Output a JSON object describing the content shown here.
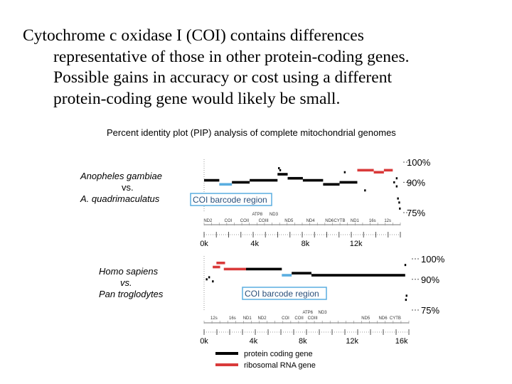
{
  "slide": {
    "line1": "Cytochrome c oxidase I (COI) contains differences",
    "line2": "representative of those in other protein-coding genes.",
    "line3": "Possible gains in accuracy or cost using a different",
    "line4": "protein-coding gene would likely be small."
  },
  "colors": {
    "protein": "#000000",
    "rrna": "#d93a3a",
    "coi": "#5aaee0",
    "axis": "#555555"
  },
  "chart_data": {
    "type": "line",
    "title": "Percent identity plot (PIP) analysis of complete mitochondrial genomes",
    "legend": {
      "placement": "bottom",
      "entries": [
        {
          "label": "protein coding gene",
          "color": "#000000"
        },
        {
          "label": "ribosomal RNA gene",
          "color": "#d93a3a"
        }
      ]
    },
    "panels": [
      {
        "name": "anopheles",
        "comparison": [
          "Anopheles gambiae",
          "vs.",
          "A. quadrimaculatus"
        ],
        "box_label": "COI barcode region",
        "xlim": [
          0,
          15500
        ],
        "ylim": [
          75,
          100
        ],
        "y_ticks": [
          {
            "value": 100,
            "label": "100%"
          },
          {
            "value": 90,
            "label": "90%"
          },
          {
            "value": 75,
            "label": "75%"
          }
        ],
        "x_ticks": [
          {
            "value": 0,
            "label": "0k"
          },
          {
            "value": 4000,
            "label": "4k"
          },
          {
            "value": 8000,
            "label": "8k"
          },
          {
            "value": 12000,
            "label": "12k"
          }
        ],
        "genes_row": [
          {
            "label": "ND2",
            "x": 300
          },
          {
            "label": "COI",
            "x": 1900
          },
          {
            "label": "COII",
            "x": 3200
          },
          {
            "label": "COIII",
            "x": 4700
          },
          {
            "label": "ND5",
            "x": 6700
          },
          {
            "label": "ND4",
            "x": 8400
          },
          {
            "label": "ND6",
            "x": 9900
          },
          {
            "label": "CYTB",
            "x": 10700
          },
          {
            "label": "ND1",
            "x": 11900
          },
          {
            "label": "16s",
            "x": 13300
          },
          {
            "label": "12s",
            "x": 14500
          }
        ],
        "genes_above": [
          {
            "label": "ATP8",
            "x": 4200
          },
          {
            "label": "ND3",
            "x": 5500
          }
        ],
        "segments": [
          {
            "kind": "protein",
            "start": 0,
            "end": 1200,
            "y": 91
          },
          {
            "kind": "coi",
            "start": 1200,
            "end": 2200,
            "y": 89
          },
          {
            "kind": "protein",
            "start": 2200,
            "end": 3600,
            "y": 90
          },
          {
            "kind": "protein",
            "start": 3600,
            "end": 5800,
            "y": 91
          },
          {
            "kind": "protein",
            "start": 5800,
            "end": 6600,
            "y": 94
          },
          {
            "kind": "protein",
            "start": 6600,
            "end": 7800,
            "y": 92
          },
          {
            "kind": "protein",
            "start": 7800,
            "end": 9400,
            "y": 91
          },
          {
            "kind": "protein",
            "start": 9400,
            "end": 10700,
            "y": 89
          },
          {
            "kind": "protein",
            "start": 10700,
            "end": 12100,
            "y": 90
          },
          {
            "kind": "rrna",
            "start": 12100,
            "end": 13400,
            "y": 96
          },
          {
            "kind": "rrna",
            "start": 13400,
            "end": 14200,
            "y": 95
          },
          {
            "kind": "rrna",
            "start": 14200,
            "end": 14900,
            "y": 96
          }
        ],
        "dots": [
          [
            5900,
            97
          ],
          [
            6000,
            96
          ],
          [
            11100,
            95
          ],
          [
            12700,
            86
          ],
          [
            15000,
            90
          ],
          [
            15200,
            88
          ],
          [
            15300,
            82
          ],
          [
            15400,
            80
          ],
          [
            15450,
            77
          ],
          [
            15200,
            92
          ]
        ],
        "coi_box": {
          "start": 1200,
          "end": 2200
        }
      },
      {
        "name": "homo",
        "comparison": [
          "Homo sapiens",
          "vs.",
          "Pan troglodytes"
        ],
        "box_label": "COI barcode region",
        "xlim": [
          0,
          16600
        ],
        "ylim": [
          75,
          100
        ],
        "y_ticks": [
          {
            "value": 100,
            "label": "100%"
          },
          {
            "value": 90,
            "label": "90%"
          },
          {
            "value": 75,
            "label": "75%"
          }
        ],
        "x_ticks": [
          {
            "value": 0,
            "label": "0k"
          },
          {
            "value": 4000,
            "label": "4k"
          },
          {
            "value": 8000,
            "label": "8k"
          },
          {
            "value": 12000,
            "label": "12k"
          },
          {
            "value": 16000,
            "label": "16k"
          }
        ],
        "genes_row": [
          {
            "label": "12s",
            "x": 800
          },
          {
            "label": "16s",
            "x": 2300
          },
          {
            "label": "ND1",
            "x": 3500
          },
          {
            "label": "ND2",
            "x": 4700
          },
          {
            "label": "COI",
            "x": 6600
          },
          {
            "label": "COII",
            "x": 7700
          },
          {
            "label": "COIII",
            "x": 8800
          },
          {
            "label": "ND5",
            "x": 13100
          },
          {
            "label": "ND6",
            "x": 14500
          },
          {
            "label": "CYTB",
            "x": 15500
          }
        ],
        "genes_above": [
          {
            "label": "ATP6",
            "x": 8400
          },
          {
            "label": "ND3",
            "x": 9600
          }
        ],
        "segments": [
          {
            "kind": "rrna",
            "start": 700,
            "end": 1300,
            "y": 96
          },
          {
            "kind": "rrna",
            "start": 1000,
            "end": 1700,
            "y": 98
          },
          {
            "kind": "rrna",
            "start": 1600,
            "end": 3400,
            "y": 95
          },
          {
            "kind": "protein",
            "start": 3400,
            "end": 6300,
            "y": 95
          },
          {
            "kind": "coi",
            "start": 6300,
            "end": 7100,
            "y": 92
          },
          {
            "kind": "protein",
            "start": 7100,
            "end": 8700,
            "y": 93
          },
          {
            "kind": "protein",
            "start": 8700,
            "end": 16300,
            "y": 92
          }
        ],
        "dots": [
          [
            200,
            90
          ],
          [
            400,
            91
          ],
          [
            700,
            89
          ],
          [
            16300,
            97
          ],
          [
            16350,
            80
          ],
          [
            16400,
            82
          ]
        ],
        "coi_box": {
          "start": 6300,
          "end": 7100
        }
      }
    ]
  }
}
